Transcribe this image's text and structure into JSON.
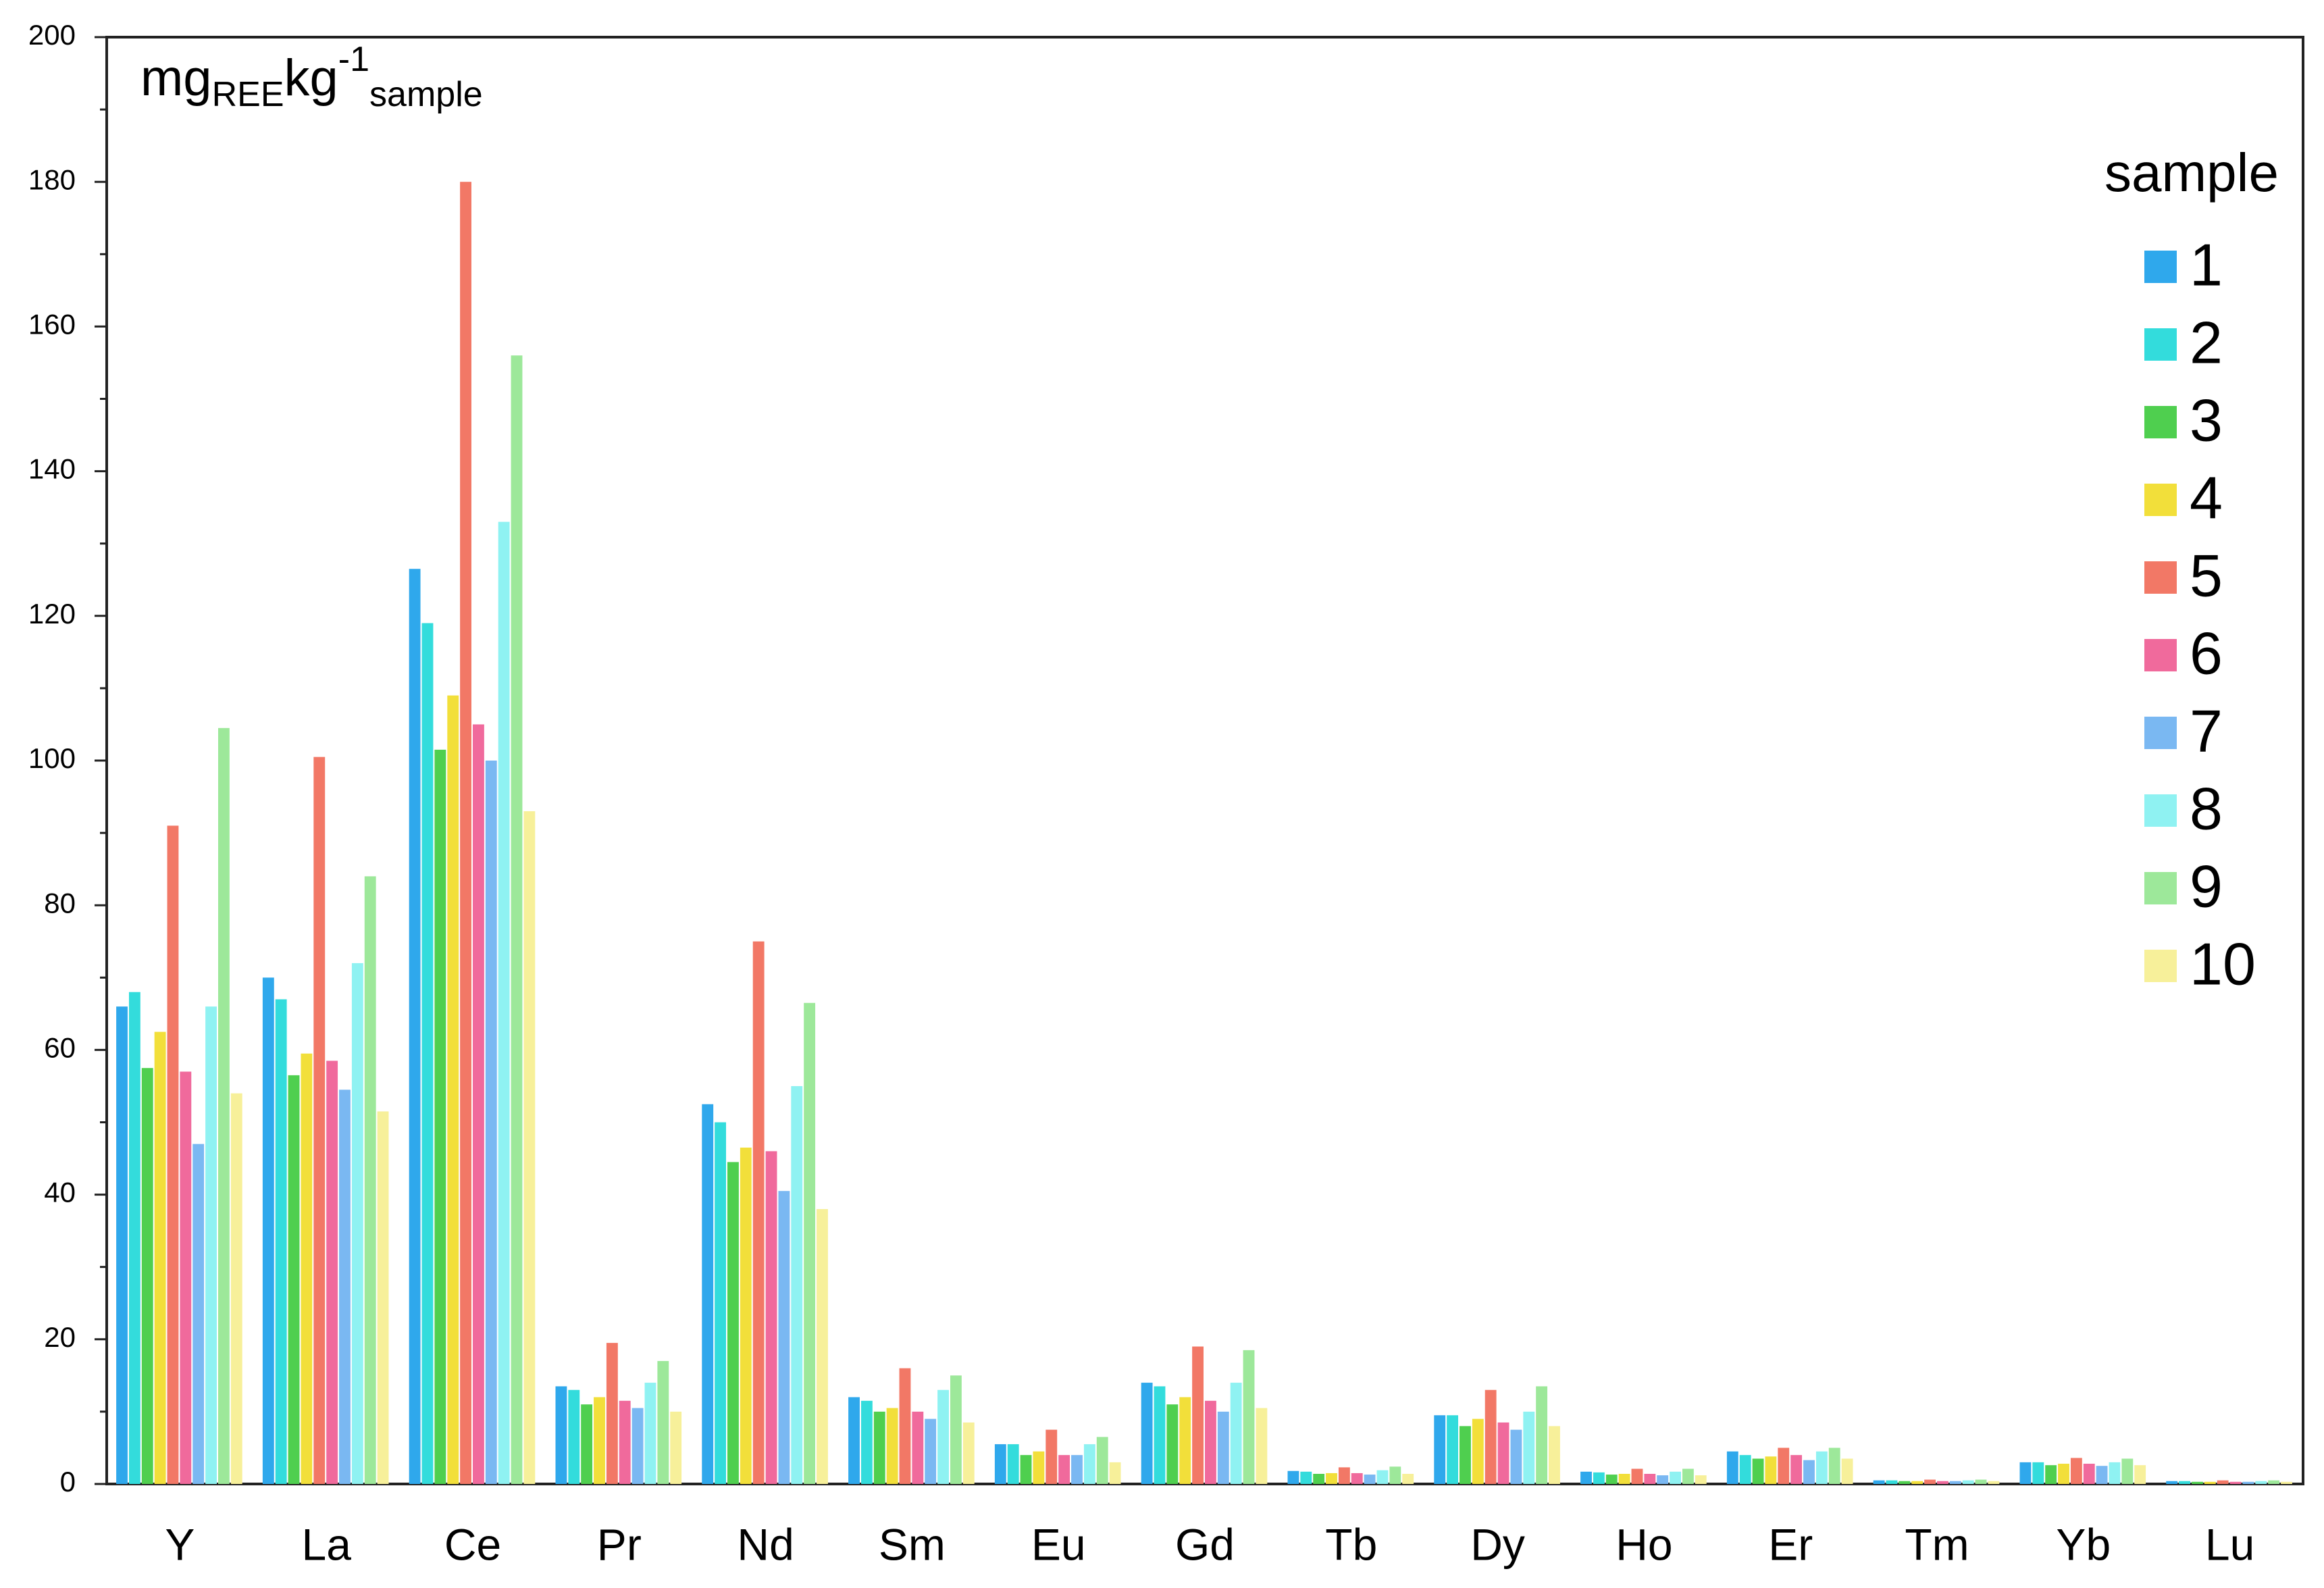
{
  "chart_data": {
    "type": "bar",
    "title": [
      "mg",
      "REE",
      "kg",
      "-1",
      "sample"
    ],
    "legend_title": "sample",
    "legend": "right",
    "categories": [
      "Y",
      "La",
      "Ce",
      "Pr",
      "Nd",
      "Sm",
      "Eu",
      "Gd",
      "Tb",
      "Dy",
      "Ho",
      "Er",
      "Tm",
      "Yb",
      "Lu"
    ],
    "ylim": [
      0,
      200
    ],
    "yticks": [
      0,
      20,
      40,
      60,
      80,
      100,
      120,
      140,
      160,
      180,
      200
    ],
    "yminorticks": [
      10,
      30,
      50,
      70,
      90,
      110,
      130,
      150,
      170,
      190
    ],
    "series": [
      {
        "name": "1",
        "color": "#2fa8ec",
        "values": [
          66,
          70,
          126.5,
          13.5,
          52.5,
          12,
          5.5,
          14,
          1.8,
          9.5,
          1.7,
          4.5,
          0.5,
          3,
          0.4
        ]
      },
      {
        "name": "2",
        "color": "#33dcdc",
        "values": [
          68,
          67,
          119,
          13,
          50,
          11.5,
          5.5,
          13.5,
          1.7,
          9.5,
          1.6,
          4,
          0.5,
          3,
          0.4
        ]
      },
      {
        "name": "3",
        "color": "#4fcf4f",
        "values": [
          57.5,
          56.5,
          101.5,
          11,
          44.5,
          10,
          4,
          11,
          1.4,
          8,
          1.3,
          3.5,
          0.4,
          2.6,
          0.3
        ]
      },
      {
        "name": "4",
        "color": "#f2df3a",
        "values": [
          62.5,
          59.5,
          109,
          12,
          46.5,
          10.5,
          4.5,
          12,
          1.5,
          9,
          1.4,
          3.8,
          0.4,
          2.8,
          0.3
        ]
      },
      {
        "name": "5",
        "color": "#f27866",
        "values": [
          91,
          100.5,
          180,
          19.5,
          75,
          16,
          7.5,
          19,
          2.3,
          13,
          2.1,
          5,
          0.6,
          3.6,
          0.5
        ]
      },
      {
        "name": "6",
        "color": "#f06a9c",
        "values": [
          57,
          58.5,
          105,
          11.5,
          46,
          10,
          4,
          11.5,
          1.5,
          8.5,
          1.4,
          4,
          0.4,
          2.8,
          0.3
        ]
      },
      {
        "name": "7",
        "color": "#7ab8f2",
        "values": [
          47,
          54.5,
          100,
          10.5,
          40.5,
          9,
          4,
          10,
          1.3,
          7.5,
          1.2,
          3.3,
          0.4,
          2.5,
          0.3
        ]
      },
      {
        "name": "8",
        "color": "#8ff2f2",
        "values": [
          66,
          72,
          133,
          14,
          55,
          13,
          5.5,
          14,
          1.9,
          10,
          1.7,
          4.5,
          0.5,
          3,
          0.4
        ]
      },
      {
        "name": "9",
        "color": "#9de89a",
        "values": [
          104.5,
          84,
          156,
          17,
          66.5,
          15,
          6.5,
          18.5,
          2.4,
          13.5,
          2.1,
          5,
          0.6,
          3.5,
          0.5
        ]
      },
      {
        "name": "10",
        "color": "#f7f09a",
        "values": [
          54,
          51.5,
          93,
          10,
          38,
          8.5,
          3,
          10.5,
          1.4,
          8,
          1.2,
          3.5,
          0.4,
          2.6,
          0.3
        ]
      }
    ]
  }
}
